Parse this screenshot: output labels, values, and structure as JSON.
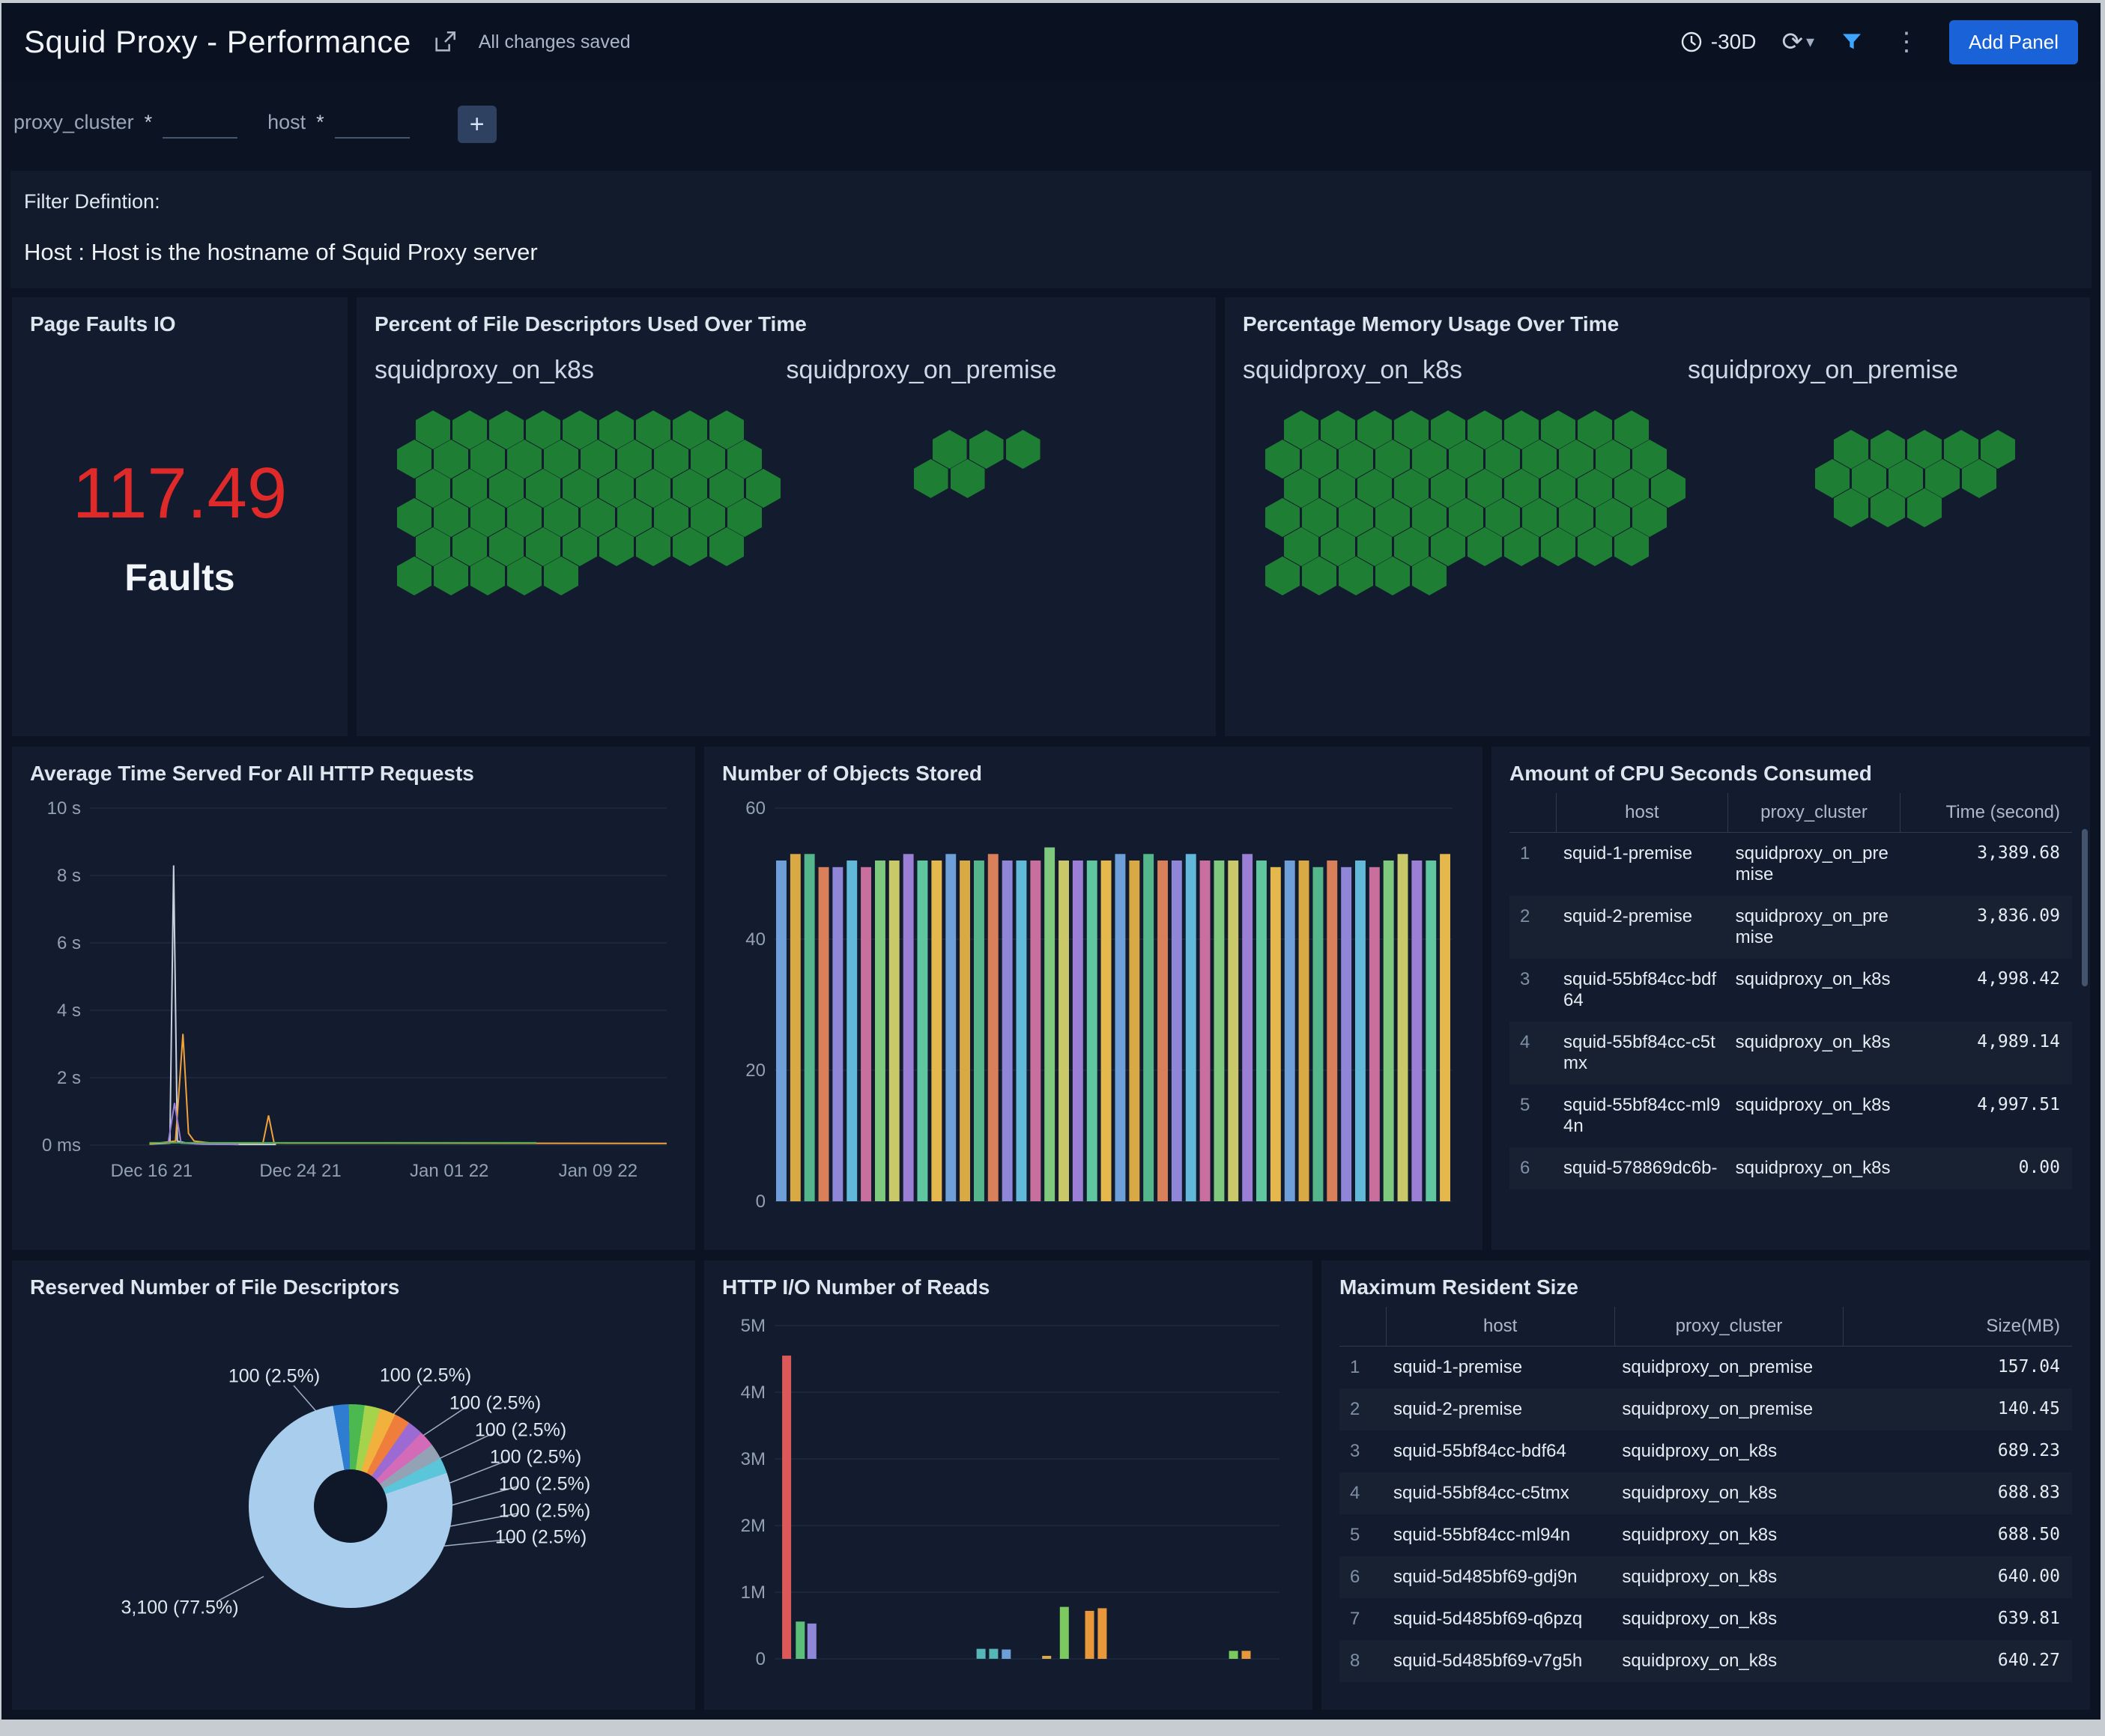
{
  "header": {
    "title": "Squid Proxy - Performance",
    "saved_status": "All changes saved",
    "time_range": "-30D",
    "add_panel_label": "Add Panel",
    "accent_color": "#1962d8",
    "filter_icon_color": "#3ea6ff"
  },
  "filters": {
    "fields": [
      {
        "label": "proxy_cluster",
        "required": "*",
        "value": ""
      },
      {
        "label": "host",
        "required": "*",
        "value": ""
      }
    ],
    "add_filter_label": "+"
  },
  "filter_definition": {
    "title": "Filter Defintion:",
    "text": "Host : Host is the hostname of Squid Proxy server"
  },
  "panels": {
    "hex_color": "#1e7e34",
    "page_faults": {
      "title": "Page Faults IO",
      "value": "117.49",
      "unit": "Faults",
      "value_color": "#e02a2a"
    },
    "fd_used": {
      "title": "Percent of  File Descriptors Used Over Time",
      "groups": [
        {
          "label": "squidproxy_on_k8s",
          "rows": [
            9,
            10,
            10,
            10,
            9,
            5
          ]
        },
        {
          "label": "squidproxy_on_premise",
          "rows": [
            3,
            2
          ]
        }
      ]
    },
    "memory_usage": {
      "title": "Percentage Memory Usage Over Time",
      "groups": [
        {
          "label": "squidproxy_on_k8s",
          "rows": [
            10,
            11,
            11,
            11,
            10,
            5
          ]
        },
        {
          "label": "squidproxy_on_premise",
          "rows": [
            5,
            5,
            3
          ]
        }
      ]
    },
    "avg_time": {
      "title": "Average Time Served For All HTTP Requests"
    },
    "objects_stored": {
      "title": "Number of Objects Stored"
    },
    "cpu_seconds": {
      "title": "Amount of CPU Seconds Consumed"
    },
    "reserved_fd": {
      "title": "Reserved Number of File Descriptors"
    },
    "http_reads": {
      "title": "HTTP I/O Number of Reads"
    },
    "max_resident": {
      "title": "Maximum Resident Size"
    }
  },
  "cpu_table": {
    "columns": [
      "host",
      "proxy_cluster",
      "Time (second)"
    ],
    "rows": [
      {
        "n": "1",
        "host": "squid-1-premise",
        "cluster": "squidproxy_on_premise",
        "value": "3,389.68"
      },
      {
        "n": "2",
        "host": "squid-2-premise",
        "cluster": "squidproxy_on_premise",
        "value": "3,836.09"
      },
      {
        "n": "3",
        "host": "squid-55bf84cc-bdf64",
        "cluster": "squidproxy_on_k8s",
        "value": "4,998.42"
      },
      {
        "n": "4",
        "host": "squid-55bf84cc-c5tmx",
        "cluster": "squidproxy_on_k8s",
        "value": "4,989.14"
      },
      {
        "n": "5",
        "host": "squid-55bf84cc-ml94n",
        "cluster": "squidproxy_on_k8s",
        "value": "4,997.51"
      },
      {
        "n": "6",
        "host": "squid-578869dc6b-",
        "cluster": "squidproxy_on_k8s",
        "value": "0.00"
      }
    ]
  },
  "size_table": {
    "columns": [
      "host",
      "proxy_cluster",
      "Size(MB)"
    ],
    "rows": [
      {
        "n": "1",
        "host": "squid-1-premise",
        "cluster": "squidproxy_on_premise",
        "value": "157.04"
      },
      {
        "n": "2",
        "host": "squid-2-premise",
        "cluster": "squidproxy_on_premise",
        "value": "140.45"
      },
      {
        "n": "3",
        "host": "squid-55bf84cc-bdf64",
        "cluster": "squidproxy_on_k8s",
        "value": "689.23"
      },
      {
        "n": "4",
        "host": "squid-55bf84cc-c5tmx",
        "cluster": "squidproxy_on_k8s",
        "value": "688.83"
      },
      {
        "n": "5",
        "host": "squid-55bf84cc-ml94n",
        "cluster": "squidproxy_on_k8s",
        "value": "688.50"
      },
      {
        "n": "6",
        "host": "squid-5d485bf69-gdj9n",
        "cluster": "squidproxy_on_k8s",
        "value": "640.00"
      },
      {
        "n": "7",
        "host": "squid-5d485bf69-q6pzq",
        "cluster": "squidproxy_on_k8s",
        "value": "639.81"
      },
      {
        "n": "8",
        "host": "squid-5d485bf69-v7g5h",
        "cluster": "squidproxy_on_k8s",
        "value": "640.27"
      }
    ]
  },
  "chart_data": [
    {
      "id": "avg_time_http",
      "type": "line",
      "title": "Average Time Served For All HTTP Requests",
      "ylabel": "time",
      "ylim": [
        0,
        10
      ],
      "y_ticks_top_down": [
        "10 s",
        "8 s",
        "6 s",
        "4 s",
        "2 s",
        "0 ms"
      ],
      "xlim": [
        0,
        31
      ],
      "x_ticks": [
        "Dec 16 21",
        "Dec 24 21",
        "Jan 01 22",
        "Jan 09 22"
      ],
      "x_tick_pos": [
        0.107,
        0.365,
        0.623,
        0.881
      ],
      "grid": true,
      "series": [
        {
          "name": "series-gray",
          "color": "#c7d0dc",
          "points": [
            [
              3.2,
              0.03
            ],
            [
              4.3,
              0.06
            ],
            [
              4.5,
              8.3
            ],
            [
              4.7,
              0.12
            ],
            [
              5.2,
              0.06
            ],
            [
              6,
              0.03
            ],
            [
              8,
              0.02
            ],
            [
              10,
              0.02
            ]
          ]
        },
        {
          "name": "series-orange",
          "color": "#f2a23c",
          "points": [
            [
              3.2,
              0.03
            ],
            [
              4.6,
              0.12
            ],
            [
              5.0,
              3.3
            ],
            [
              5.3,
              0.35
            ],
            [
              5.6,
              0.12
            ],
            [
              6.5,
              0.06
            ],
            [
              9.3,
              0.06
            ],
            [
              9.6,
              0.88
            ],
            [
              9.9,
              0.06
            ],
            [
              31,
              0.05
            ]
          ]
        },
        {
          "name": "series-purple",
          "color": "#9b7fd4",
          "points": [
            [
              4.2,
              0.03
            ],
            [
              4.55,
              1.25
            ],
            [
              4.9,
              0.06
            ],
            [
              6,
              0.03
            ],
            [
              8,
              0.02
            ]
          ]
        },
        {
          "name": "series-green",
          "color": "#4caf50",
          "points": [
            [
              3.2,
              0.07
            ],
            [
              24,
              0.07
            ]
          ]
        }
      ]
    },
    {
      "id": "objects_stored",
      "type": "bar",
      "title": "Number of Objects Stored",
      "ylim": [
        0,
        60
      ],
      "y_ticks_top_down": [
        "60",
        "40",
        "20",
        "0"
      ],
      "grid": true,
      "palette": [
        "#6f9fd8",
        "#d9a943",
        "#56b68b",
        "#d97f5a",
        "#8f86d8",
        "#62b8d8",
        "#c96f9e",
        "#7fc97f",
        "#c9c96a",
        "#9b7fd4",
        "#5fc6a0",
        "#e4b84c"
      ],
      "values": [
        52,
        53,
        53,
        51,
        51,
        52,
        51,
        52,
        52,
        53,
        52,
        52,
        53,
        52,
        52,
        53,
        52,
        52,
        52,
        54,
        52,
        52,
        52,
        52,
        53,
        52,
        53,
        52,
        52,
        53,
        52,
        52,
        52,
        53,
        52,
        51,
        52,
        52,
        51,
        52,
        51,
        52,
        51,
        52,
        53,
        52,
        52,
        53
      ]
    },
    {
      "id": "reserved_fd_pie",
      "type": "pie",
      "title": "Reserved Number of File Descriptors",
      "slices": [
        {
          "label": "3,100 (77.5%)",
          "value": 77.5,
          "color": "#a9cdec"
        },
        {
          "label": "100 (2.5%)",
          "value": 2.5,
          "color": "#2e7dd1"
        },
        {
          "label": "100 (2.5%)",
          "value": 2.5,
          "color": "#4cb950"
        },
        {
          "label": "100 (2.5%)",
          "value": 2.5,
          "color": "#a5d34c"
        },
        {
          "label": "100 (2.5%)",
          "value": 2.5,
          "color": "#f2b13c"
        },
        {
          "label": "100 (2.5%)",
          "value": 2.5,
          "color": "#ef7d3b"
        },
        {
          "label": "100 (2.5%)",
          "value": 2.5,
          "color": "#9b6bd3"
        },
        {
          "label": "100 (2.5%)",
          "value": 2.5,
          "color": "#d36bb8"
        },
        {
          "label": "100 (2.5%)",
          "value": 2.5,
          "color": "#93a3b5"
        },
        {
          "label": "100 (2.5%)",
          "value": 2.5,
          "color": "#5bc6da"
        }
      ]
    },
    {
      "id": "http_reads",
      "type": "bar",
      "title": "HTTP I/O Number of Reads",
      "ylim": [
        0,
        5000000
      ],
      "y_ticks_top_down": [
        "5M",
        "4M",
        "3M",
        "2M",
        "1M",
        "0"
      ],
      "grid": true,
      "bars": [
        {
          "x": 0.015,
          "value": 4550000,
          "color": "#dd5858"
        },
        {
          "x": 0.042,
          "value": 560000,
          "color": "#5bbf7a"
        },
        {
          "x": 0.065,
          "value": 530000,
          "color": "#8f86d8"
        },
        {
          "x": 0.4,
          "value": 150000,
          "color": "#56b6b8"
        },
        {
          "x": 0.425,
          "value": 150000,
          "color": "#56b6b8"
        },
        {
          "x": 0.45,
          "value": 140000,
          "color": "#6f9fd8"
        },
        {
          "x": 0.53,
          "value": 45000,
          "color": "#d9a943"
        },
        {
          "x": 0.565,
          "value": 780000,
          "color": "#7bc95f"
        },
        {
          "x": 0.615,
          "value": 720000,
          "color": "#e8973a"
        },
        {
          "x": 0.64,
          "value": 760000,
          "color": "#e8973a"
        },
        {
          "x": 0.9,
          "value": 120000,
          "color": "#7bc95f"
        },
        {
          "x": 0.925,
          "value": 120000,
          "color": "#e8973a"
        }
      ]
    }
  ]
}
